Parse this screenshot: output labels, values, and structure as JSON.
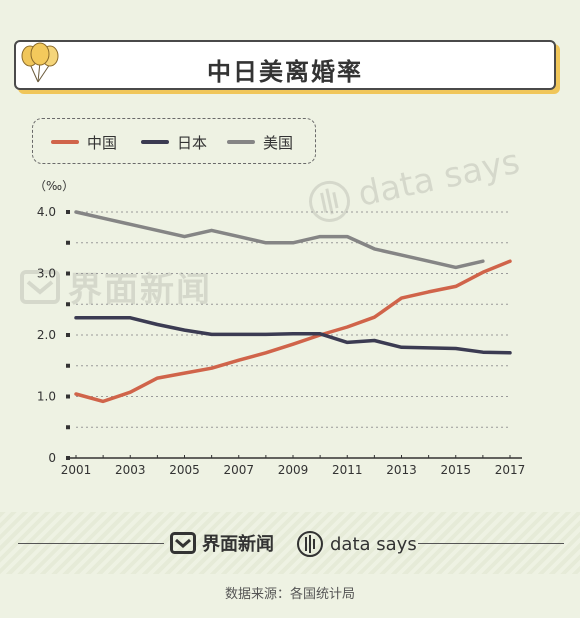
{
  "title": "中日美离婚率",
  "legend": [
    {
      "name": "中国",
      "color": "#d0644a"
    },
    {
      "name": "日本",
      "color": "#3b3b52"
    },
    {
      "name": "美国",
      "color": "#858585"
    }
  ],
  "watermarks": {
    "brand_cn": "界面新闻",
    "brand_en": "data says"
  },
  "footer": {
    "brand_cn": "界面新闻",
    "brand_en": "data says",
    "source": "数据来源：各国统计局"
  },
  "chart_data": {
    "type": "line",
    "unit_label": "（‰）",
    "x": [
      2001,
      2002,
      2003,
      2004,
      2005,
      2006,
      2007,
      2008,
      2009,
      2010,
      2011,
      2012,
      2013,
      2014,
      2015,
      2016,
      2017
    ],
    "x_tick_labels": [
      "2001",
      "2003",
      "2005",
      "2007",
      "2009",
      "2011",
      "2013",
      "2015",
      "2017"
    ],
    "y_tick_labels": [
      "0",
      "1.0",
      "2.0",
      "3.0",
      "4.0"
    ],
    "ylim": [
      0,
      4.0
    ],
    "xlim": [
      2001,
      2017
    ],
    "grid": "horizontal dotted",
    "legend_position": "top-left",
    "series": [
      {
        "name": "中国",
        "color": "#d0644a",
        "x": [
          2001,
          2002,
          2003,
          2004,
          2005,
          2006,
          2007,
          2008,
          2009,
          2010,
          2011,
          2012,
          2013,
          2014,
          2015,
          2016,
          2017
        ],
        "values": [
          1.04,
          0.92,
          1.07,
          1.3,
          1.38,
          1.46,
          1.59,
          1.71,
          1.85,
          2.0,
          2.13,
          2.29,
          2.6,
          2.7,
          2.79,
          3.02,
          3.2
        ]
      },
      {
        "name": "日本",
        "color": "#3b3b52",
        "x": [
          2001,
          2002,
          2003,
          2004,
          2005,
          2006,
          2007,
          2008,
          2009,
          2010,
          2011,
          2012,
          2013,
          2014,
          2015,
          2016,
          2017
        ],
        "values": [
          2.28,
          2.28,
          2.28,
          2.17,
          2.08,
          2.01,
          2.01,
          2.01,
          2.02,
          2.02,
          1.88,
          1.91,
          1.8,
          1.79,
          1.78,
          1.72,
          1.71
        ]
      },
      {
        "name": "美国",
        "color": "#858585",
        "x": [
          2001,
          2002,
          2003,
          2004,
          2005,
          2006,
          2007,
          2008,
          2009,
          2010,
          2011,
          2012,
          2013,
          2014,
          2015,
          2016
        ],
        "values": [
          4.0,
          3.9,
          3.8,
          3.7,
          3.6,
          3.7,
          3.6,
          3.5,
          3.5,
          3.6,
          3.6,
          3.4,
          3.3,
          3.2,
          3.1,
          3.2
        ]
      }
    ]
  }
}
